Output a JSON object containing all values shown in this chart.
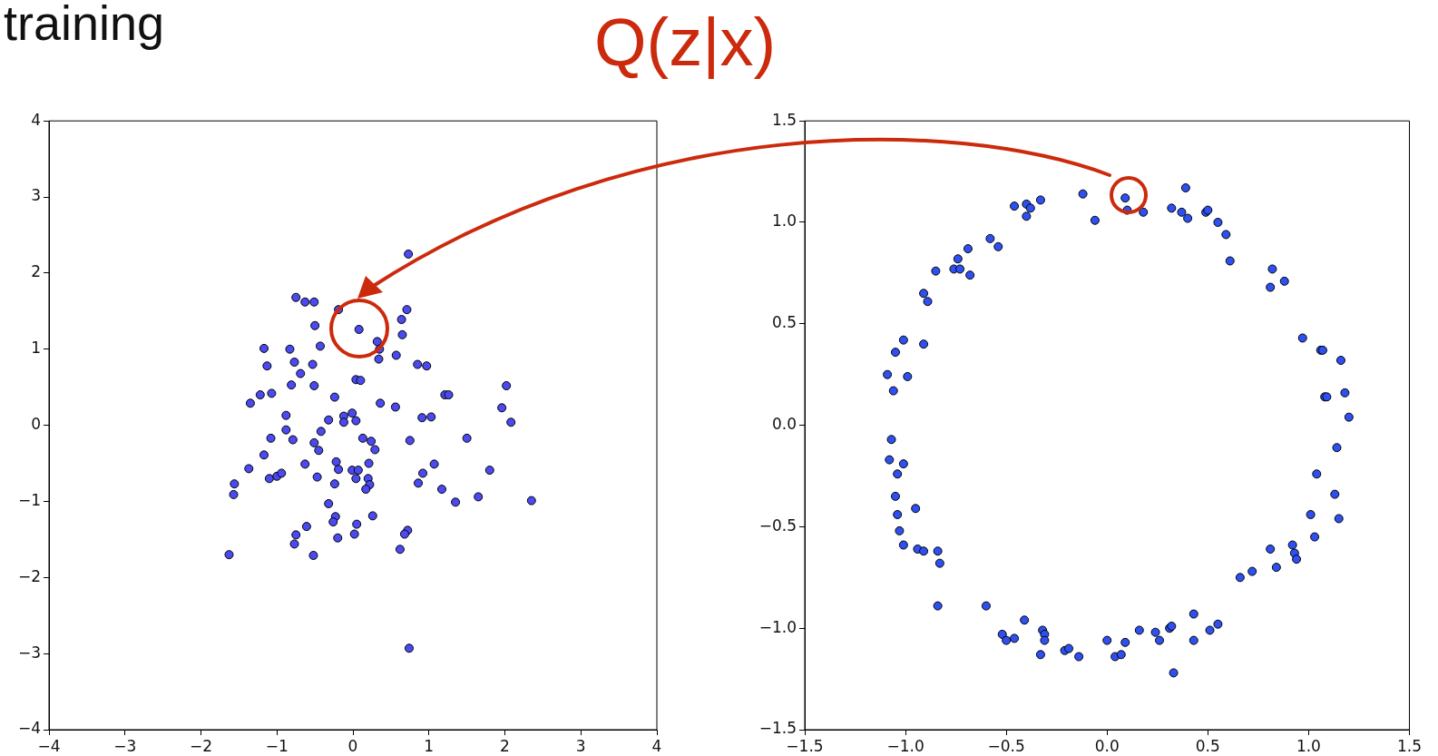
{
  "chart_data": [
    {
      "type": "scatter",
      "title": "training",
      "marker": "circle",
      "grid": false,
      "legend": false,
      "xlim": [
        -4,
        4
      ],
      "xticks": [
        {
          "value": -4,
          "label": "−4"
        },
        {
          "value": -3,
          "label": "−3"
        },
        {
          "value": -2,
          "label": "−2"
        },
        {
          "value": -1,
          "label": "−1"
        },
        0,
        1,
        2,
        3,
        4
      ],
      "ylim": [
        -4,
        4
      ],
      "yticks": [
        {
          "value": -4,
          "label": "−4"
        },
        {
          "value": -3,
          "label": "−3"
        },
        {
          "value": -2,
          "label": "−2"
        },
        {
          "value": -1,
          "label": "−1"
        },
        0,
        1,
        2,
        3,
        4
      ],
      "series": [
        {
          "color": "#4a4af0",
          "x": [
            0.73,
            -0.75,
            -0.63,
            -0.51,
            -0.19,
            0.71,
            0.64,
            -0.5,
            0.08,
            0.65,
            0.32,
            0.35,
            -0.43,
            -1.17,
            -0.83,
            0.34,
            0.57,
            -1.13,
            -0.77,
            -0.53,
            0.85,
            0.97,
            -0.69,
            -0.81,
            -0.51,
            0.04,
            0.1,
            2.02,
            -1.07,
            -1.22,
            -1.35,
            1.21,
            1.26,
            -0.24,
            0.36,
            0.56,
            1.96,
            2.08,
            -0.88,
            -0.01,
            -0.12,
            -0.32,
            -0.12,
            0.04,
            0.91,
            1.03,
            -0.88,
            -0.42,
            -1.08,
            -0.79,
            -0.51,
            0.13,
            0.24,
            0.29,
            0.75,
            1.5,
            -0.45,
            -1.17,
            -1.37,
            -0.63,
            -0.22,
            -0.19,
            -0.01,
            0.07,
            0.21,
            0.04,
            0.2,
            0.22,
            0.17,
            -0.24,
            -0.47,
            -1.1,
            -1.0,
            -0.94,
            -1.56,
            -1.57,
            0.92,
            1.07,
            0.86,
            1.17,
            1.8,
            1.35,
            1.65,
            2.35,
            -0.32,
            -0.23,
            -0.26,
            0.26,
            0.05,
            -0.61,
            -0.75,
            -0.77,
            0.02,
            -0.2,
            0.72,
            0.68,
            0.62,
            -1.63,
            -0.52,
            0.74
          ],
          "values": [
            2.25,
            1.68,
            1.62,
            1.62,
            1.52,
            1.52,
            1.39,
            1.31,
            1.26,
            1.19,
            1.1,
            1.0,
            1.04,
            1.01,
            1.0,
            0.87,
            0.92,
            0.78,
            0.83,
            0.8,
            0.8,
            0.78,
            0.68,
            0.53,
            0.52,
            0.6,
            0.59,
            0.52,
            0.42,
            0.4,
            0.29,
            0.4,
            0.4,
            0.37,
            0.29,
            0.24,
            0.23,
            0.04,
            0.13,
            0.16,
            0.12,
            0.07,
            0.04,
            0.06,
            0.1,
            0.11,
            -0.06,
            -0.08,
            -0.17,
            -0.19,
            -0.23,
            -0.17,
            -0.21,
            -0.32,
            -0.2,
            -0.17,
            -0.33,
            -0.39,
            -0.57,
            -0.51,
            -0.48,
            -0.58,
            -0.59,
            -0.59,
            -0.5,
            -0.7,
            -0.7,
            -0.78,
            -0.84,
            -0.77,
            -0.68,
            -0.7,
            -0.67,
            -0.63,
            -0.77,
            -0.91,
            -0.63,
            -0.51,
            -0.76,
            -0.84,
            -0.59,
            -1.01,
            -0.94,
            -0.99,
            -1.03,
            -1.2,
            -1.27,
            -1.19,
            -1.3,
            -1.33,
            -1.44,
            -1.56,
            -1.43,
            -1.48,
            -1.38,
            -1.43,
            -1.63,
            -1.7,
            -1.71,
            -2.93
          ]
        }
      ]
    },
    {
      "type": "scatter",
      "annotations": [
        "Q(z|x)"
      ],
      "marker": "circle",
      "grid": false,
      "legend": false,
      "xlim": [
        -1.5,
        1.5
      ],
      "xticks": [
        {
          "value": -1.5,
          "label": "−1.5"
        },
        {
          "value": -1,
          "label": "−1.0"
        },
        {
          "value": -0.5,
          "label": "−0.5"
        },
        {
          "value": 0,
          "label": "0.0"
        },
        0.5,
        {
          "value": 1,
          "label": "1.0"
        },
        1.5
      ],
      "ylim": [
        -1.5,
        1.5
      ],
      "yticks": [
        {
          "value": -1.5,
          "label": "−1.5"
        },
        {
          "value": -1,
          "label": "−1.0"
        },
        {
          "value": -0.5,
          "label": "−0.5"
        },
        {
          "value": 0,
          "label": "0.0"
        },
        0.5,
        {
          "value": 1,
          "label": "1.0"
        },
        1.5
      ],
      "series": [
        {
          "color": "#2f50f0",
          "x": [
            -0.12,
            0.09,
            0.1,
            -0.06,
            -0.33,
            -0.4,
            -0.38,
            -0.46,
            -0.4,
            -0.58,
            -0.54,
            -0.69,
            -0.74,
            -0.76,
            -0.73,
            -0.68,
            -0.85,
            -0.91,
            -0.89,
            -1.01,
            -0.91,
            -1.05,
            -1.09,
            -0.99,
            -1.06,
            -1.07,
            -1.08,
            -1.01,
            -1.04,
            -1.05,
            -1.04,
            -0.95,
            -1.03,
            -1.01,
            -0.94,
            -0.91,
            -0.84,
            -0.83,
            -0.84,
            -0.6,
            -0.41,
            -0.52,
            -0.5,
            -0.46,
            -0.32,
            -0.31,
            -0.31,
            -0.33,
            -0.21,
            -0.19,
            -0.14,
            0.0,
            0.09,
            0.04,
            0.07,
            0.39,
            0.18,
            0.32,
            0.37,
            0.4,
            0.49,
            0.5,
            0.55,
            0.59,
            0.61,
            0.82,
            0.88,
            0.81,
            0.97,
            1.06,
            1.07,
            1.16,
            1.08,
            1.09,
            1.18,
            1.2,
            1.14,
            1.04,
            1.13,
            1.01,
            1.15,
            1.03,
            0.92,
            0.93,
            0.94,
            0.81,
            0.84,
            0.72,
            0.66,
            0.43,
            0.55,
            0.51,
            0.43,
            0.16,
            0.24,
            0.26,
            0.31,
            0.32,
            0.33
          ],
          "values": [
            1.14,
            1.12,
            1.06,
            1.01,
            1.11,
            1.09,
            1.07,
            1.08,
            1.03,
            0.92,
            0.88,
            0.87,
            0.82,
            0.77,
            0.77,
            0.74,
            0.76,
            0.65,
            0.61,
            0.42,
            0.4,
            0.36,
            0.25,
            0.24,
            0.17,
            -0.07,
            -0.17,
            -0.19,
            -0.24,
            -0.35,
            -0.44,
            -0.41,
            -0.52,
            -0.59,
            -0.61,
            -0.62,
            -0.62,
            -0.68,
            -0.89,
            -0.89,
            -0.96,
            -1.03,
            -1.06,
            -1.05,
            -1.01,
            -1.03,
            -1.06,
            -1.13,
            -1.11,
            -1.1,
            -1.14,
            -1.06,
            -1.07,
            -1.14,
            -1.13,
            1.17,
            1.05,
            1.07,
            1.05,
            1.02,
            1.05,
            1.06,
            1.0,
            0.94,
            0.81,
            0.77,
            0.71,
            0.68,
            0.43,
            0.37,
            0.37,
            0.32,
            0.14,
            0.14,
            0.16,
            0.04,
            -0.11,
            -0.24,
            -0.34,
            -0.44,
            -0.46,
            -0.55,
            -0.59,
            -0.63,
            -0.66,
            -0.61,
            -0.7,
            -0.72,
            -0.75,
            -0.93,
            -0.98,
            -1.01,
            -1.06,
            -1.01,
            -1.02,
            -1.06,
            -1.0,
            -0.99,
            -1.22
          ]
        }
      ]
    }
  ]
}
